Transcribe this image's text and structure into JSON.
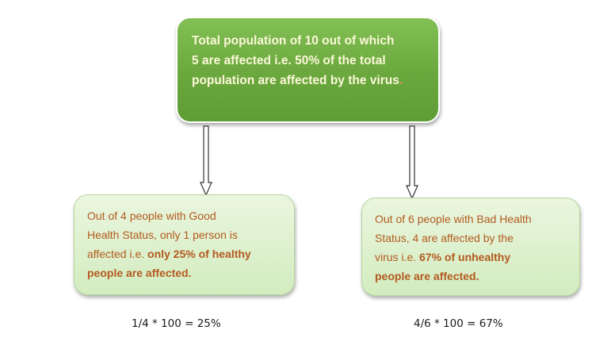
{
  "top_box": {
    "line1": "Total population of 10 out of which",
    "line2": "5 are affected i.e. 50% of the total",
    "line3": "population are affected by the virus",
    "line3_end": "."
  },
  "left_box": {
    "line1": "Out of 4 people with Good",
    "line2": "Health Status, only 1 person is",
    "line3_plain": "affected i.e. ",
    "line3_bold": "only 25% of healthy",
    "line4_bold": "people are affected."
  },
  "right_box": {
    "line1": "Out of 6 people with Bad Health",
    "line2": "Status, 4 are affected by the",
    "line3_plain": "virus i.e. ",
    "line3_bold": "67% of unhealthy",
    "line4_bold": "people are affected."
  },
  "formulas": {
    "left": "1/4 * 100 = 25%",
    "right": "4/6 * 100 = 67%"
  },
  "colors": {
    "top_box_fill": "#6aa83e",
    "top_box_text": "#fbf7d8",
    "bottom_box_fill": "#d3ecbf",
    "bottom_box_text": "#b35a1f"
  }
}
